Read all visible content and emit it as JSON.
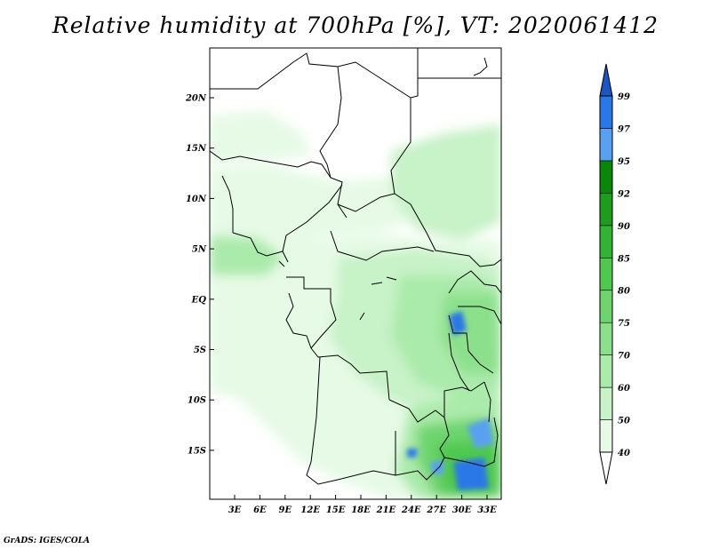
{
  "title": "Relative humidity at 700hPa [%], VT: 2020061412",
  "footer": "GrADS: IGES/COLA",
  "map": {
    "lat_labels": [
      "20N",
      "15N",
      "10N",
      "5N",
      "EQ",
      "5S",
      "10S",
      "15S"
    ],
    "lon_labels": [
      "3E",
      "6E",
      "9E",
      "12E",
      "15E",
      "18E",
      "21E",
      "24E",
      "27E",
      "30E",
      "33E"
    ]
  },
  "colorbar": {
    "labels": [
      "40",
      "50",
      "60",
      "70",
      "75",
      "80",
      "85",
      "90",
      "92",
      "95",
      "97",
      "99"
    ],
    "colors": [
      "#ffffff",
      "#e6fae6",
      "#c8f2c8",
      "#aaeaaa",
      "#8ce08c",
      "#6ed46e",
      "#50c850",
      "#32b432",
      "#1e9c1e",
      "#0a860a",
      "#5aa0f0",
      "#2a78e6",
      "#1c54c0"
    ]
  }
}
